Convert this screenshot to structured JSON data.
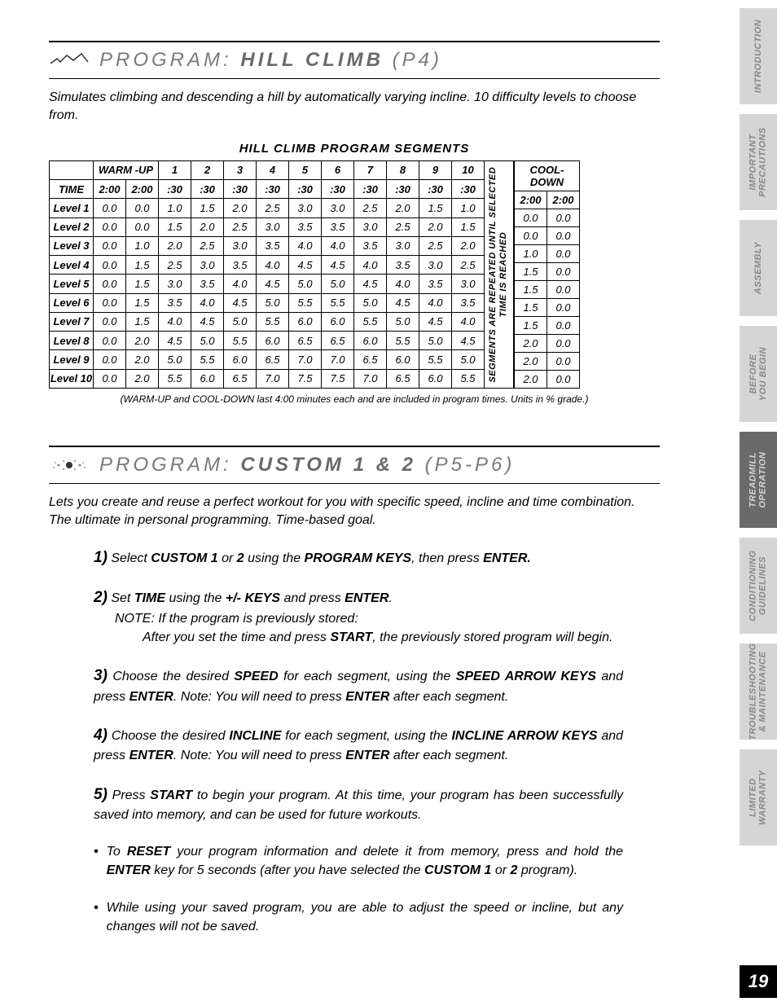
{
  "section1": {
    "title_prefix": "PROGRAM:",
    "title_main": "HILL CLIMB",
    "title_code": "(P4)",
    "description": "Simulates climbing and descending a hill by automatically varying incline. 10 difficulty levels to choose from.",
    "table_title": "HILL CLIMB PROGRAM SEGMENTS",
    "headers": {
      "blank": "",
      "warmup": "WARM -UP",
      "segments": [
        "1",
        "2",
        "3",
        "4",
        "5",
        "6",
        "7",
        "8",
        "9",
        "10"
      ],
      "cooldown": "COOL-DOWN",
      "time_label": "TIME",
      "warmup_times": [
        "2:00",
        "2:00"
      ],
      "seg_times": [
        ":30",
        ":30",
        ":30",
        ":30",
        ":30",
        ":30",
        ":30",
        ":30",
        ":30",
        ":30"
      ],
      "cooldown_times": [
        "2:00",
        "2:00"
      ]
    },
    "row_labels": [
      "Level 1",
      "Level 2",
      "Level 3",
      "Level 4",
      "Level 5",
      "Level 6",
      "Level 7",
      "Level 8",
      "Level 9",
      "Level 10"
    ],
    "data": [
      [
        "0.0",
        "0.0",
        "1.0",
        "1.5",
        "2.0",
        "2.5",
        "3.0",
        "3.0",
        "2.5",
        "2.0",
        "1.5",
        "1.0",
        "0.0",
        "0.0"
      ],
      [
        "0.0",
        "0.0",
        "1.5",
        "2.0",
        "2.5",
        "3.0",
        "3.5",
        "3.5",
        "3.0",
        "2.5",
        "2.0",
        "1.5",
        "0.0",
        "0.0"
      ],
      [
        "0.0",
        "1.0",
        "2.0",
        "2.5",
        "3.0",
        "3.5",
        "4.0",
        "4.0",
        "3.5",
        "3.0",
        "2.5",
        "2.0",
        "1.0",
        "0.0"
      ],
      [
        "0.0",
        "1.5",
        "2.5",
        "3.0",
        "3.5",
        "4.0",
        "4.5",
        "4.5",
        "4.0",
        "3.5",
        "3.0",
        "2.5",
        "1.5",
        "0.0"
      ],
      [
        "0.0",
        "1.5",
        "3.0",
        "3.5",
        "4.0",
        "4.5",
        "5.0",
        "5.0",
        "4.5",
        "4.0",
        "3.5",
        "3.0",
        "1.5",
        "0.0"
      ],
      [
        "0.0",
        "1.5",
        "3.5",
        "4.0",
        "4.5",
        "5.0",
        "5.5",
        "5.5",
        "5.0",
        "4.5",
        "4.0",
        "3.5",
        "1.5",
        "0.0"
      ],
      [
        "0.0",
        "1.5",
        "4.0",
        "4.5",
        "5.0",
        "5.5",
        "6.0",
        "6.0",
        "5.5",
        "5.0",
        "4.5",
        "4.0",
        "1.5",
        "0.0"
      ],
      [
        "0.0",
        "2.0",
        "4.5",
        "5.0",
        "5.5",
        "6.0",
        "6.5",
        "6.5",
        "6.0",
        "5.5",
        "5.0",
        "4.5",
        "2.0",
        "0.0"
      ],
      [
        "0.0",
        "2.0",
        "5.0",
        "5.5",
        "6.0",
        "6.5",
        "7.0",
        "7.0",
        "6.5",
        "6.0",
        "5.5",
        "5.0",
        "2.0",
        "0.0"
      ],
      [
        "0.0",
        "2.0",
        "5.5",
        "6.0",
        "6.5",
        "7.0",
        "7.5",
        "7.5",
        "7.0",
        "6.5",
        "6.0",
        "5.5",
        "2.0",
        "0.0"
      ]
    ],
    "repeat_text_l1": "SEGMENTS ARE REPEATED UNTIL SELECTED",
    "repeat_text_l2": "TIME IS REACHED",
    "footnote": "(WARM-UP and COOL-DOWN last 4:00 minutes each and are included in program times. Units in % grade.)"
  },
  "section2": {
    "title_prefix": "PROGRAM:",
    "title_main": "CUSTOM 1 & 2",
    "title_code": "(P5-P6)",
    "description": "Lets you create and reuse a perfect workout for you with specific speed, incline and time combination. The ultimate in personal programming. Time-based goal.",
    "step1_num": "1)",
    "step1_a": "Select ",
    "step1_b": "CUSTOM 1",
    "step1_c": " or ",
    "step1_d": "2",
    "step1_e": " using the ",
    "step1_f": "PROGRAM KEYS",
    "step1_g": ", then press ",
    "step1_h": "ENTER.",
    "step2_num": "2)",
    "step2_a": "Set ",
    "step2_b": "TIME",
    "step2_c": " using the ",
    "step2_d": "+/- KEYS",
    "step2_e": " and press ",
    "step2_f": "ENTER",
    "step2_g": ".",
    "step2_sub1": "NOTE: If the program is previously stored:",
    "step2_sub2a": "After you set the time and press ",
    "step2_sub2b": "START",
    "step2_sub2c": ", the previously stored program will begin.",
    "step3_num": "3)",
    "step3_a": "Choose the desired ",
    "step3_b": "SPEED",
    "step3_c": " for each segment, using the ",
    "step3_d": "SPEED ARROW KEYS",
    "step3_e": " and press ",
    "step3_f": "ENTER",
    "step3_g": ". Note: You will need to press ",
    "step3_h": "ENTER",
    "step3_i": " after each segment.",
    "step4_num": "4)",
    "step4_a": "Choose the desired ",
    "step4_b": "INCLINE",
    "step4_c": " for each segment, using the ",
    "step4_d": "INCLINE ARROW KEYS",
    "step4_e": " and press ",
    "step4_f": "ENTER",
    "step4_g": ". Note: You will need to press ",
    "step4_h": "ENTER",
    "step4_i": " after each segment.",
    "step5_num": "5)",
    "step5_a": "Press ",
    "step5_b": "START",
    "step5_c": " to begin your program. At this time, your program has been successfully saved into memory, and can be used for future workouts.",
    "bullet1_a": " To ",
    "bullet1_b": "RESET",
    "bullet1_c": " your program information and delete it from memory, press and hold the ",
    "bullet1_d": "ENTER",
    "bullet1_e": " key for 5 seconds (after you have selected the ",
    "bullet1_f": "CUSTOM 1",
    "bullet1_g": " or ",
    "bullet1_h": "2",
    "bullet1_i": " program).",
    "bullet2": "While using your saved program, you are able to adjust the speed or incline, but any changes will not be saved."
  },
  "tabs": [
    {
      "label_l1": "INTRODUCTION",
      "label_l2": "",
      "active": false
    },
    {
      "label_l1": "IMPORTANT",
      "label_l2": "PRECAUTIONS",
      "active": false
    },
    {
      "label_l1": "ASSEMBLY",
      "label_l2": "",
      "active": false
    },
    {
      "label_l1": "BEFORE",
      "label_l2": "YOU BEGIN",
      "active": false
    },
    {
      "label_l1": "TREADMILL",
      "label_l2": "OPERATION",
      "active": true
    },
    {
      "label_l1": "CONDITIONING",
      "label_l2": "GUIDELINES",
      "active": false
    },
    {
      "label_l1": "TROUBLESHOOTING",
      "label_l2": "& MAINTENANCE",
      "active": false
    },
    {
      "label_l1": "LIMITED",
      "label_l2": "WARRANTY",
      "active": false
    }
  ],
  "page_number": "19",
  "colors": {
    "tab_inactive_bg": "#d5d5d5",
    "tab_inactive_text": "#888888",
    "tab_active_bg": "#6a6a6a",
    "tab_active_text": "#d5d5d5",
    "title_text": "#7a7a7a"
  }
}
